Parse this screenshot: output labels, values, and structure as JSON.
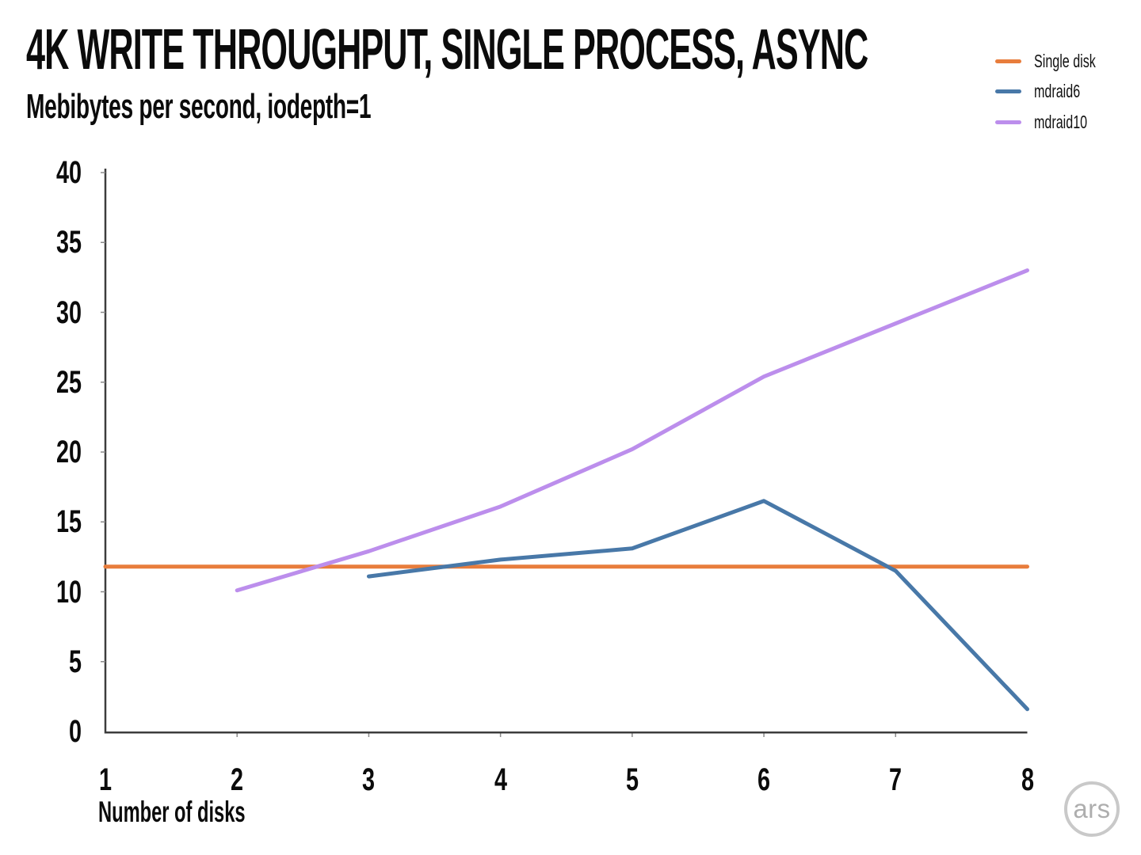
{
  "header": {
    "title": "4K WRITE THROUGHPUT, SINGLE PROCESS, ASYNC",
    "subtitle": "Mebibytes per second, iodepth=1"
  },
  "legend": {
    "position": "top-right",
    "items": [
      {
        "label": "Single disk",
        "color": "#E87D3C"
      },
      {
        "label": "mdraid6",
        "color": "#4878A8"
      },
      {
        "label": "mdraid10",
        "color": "#BC8EEC"
      }
    ]
  },
  "chart_data": {
    "type": "line",
    "title": "4K WRITE THROUGHPUT, SINGLE PROCESS, ASYNC",
    "subtitle": "Mebibytes per second, iodepth=1",
    "xlabel": "Number of disks",
    "ylabel": "",
    "xlim": [
      1,
      8
    ],
    "ylim": [
      0,
      40
    ],
    "x_ticks": [
      1,
      2,
      3,
      4,
      5,
      6,
      7,
      8
    ],
    "y_ticks": [
      0,
      5,
      10,
      15,
      20,
      25,
      30,
      35,
      40
    ],
    "grid": false,
    "legend_position": "top-right",
    "series": [
      {
        "name": "Single disk",
        "color": "#E87D3C",
        "x": [
          1,
          2,
          3,
          4,
          5,
          6,
          7,
          8
        ],
        "y": [
          11.8,
          11.8,
          11.8,
          11.8,
          11.8,
          11.8,
          11.8,
          11.8
        ]
      },
      {
        "name": "mdraid6",
        "color": "#4878A8",
        "x": [
          3,
          4,
          5,
          6,
          7,
          8
        ],
        "y": [
          11.1,
          12.3,
          13.1,
          16.5,
          11.5,
          1.6
        ]
      },
      {
        "name": "mdraid10",
        "color": "#BC8EEC",
        "x": [
          2,
          3,
          4,
          5,
          6,
          7,
          8
        ],
        "y": [
          10.1,
          12.9,
          16.1,
          20.2,
          25.4,
          29.2,
          33.0
        ]
      }
    ]
  },
  "branding": {
    "logo_text": "ars"
  },
  "colors": {
    "axis": "#3c3c3c",
    "tick": "#8a8a8a",
    "text": "#0b0b0b",
    "logo_ring": "#c9c9c9",
    "logo_text": "#aeaeae"
  }
}
